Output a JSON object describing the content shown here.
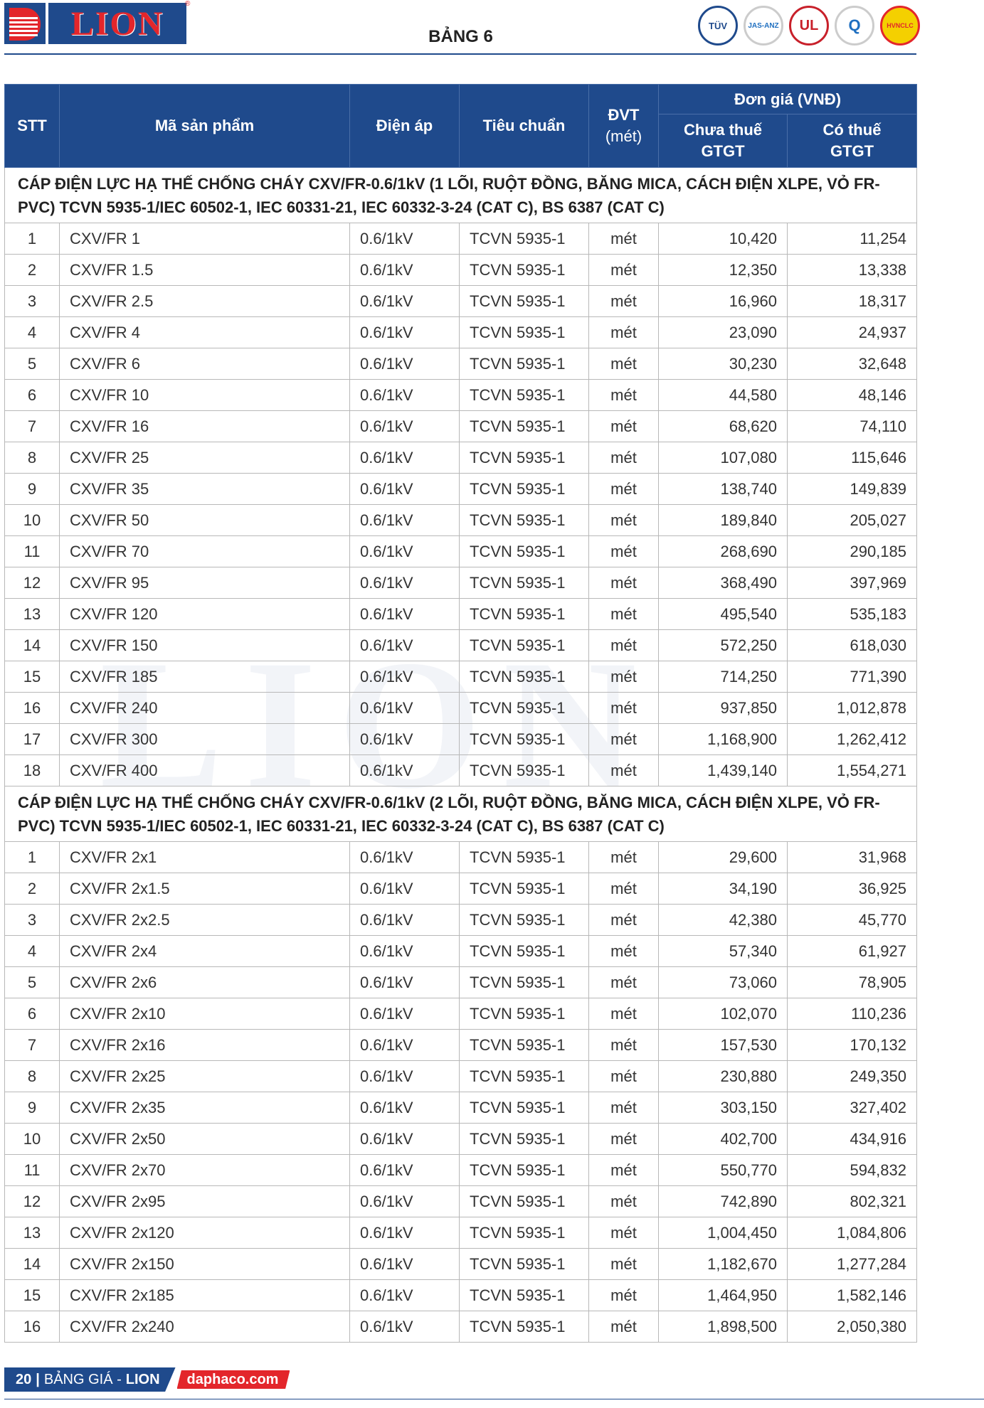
{
  "header": {
    "logo_text": "LION",
    "title": "BẢNG 6",
    "certs": [
      "TÜV",
      "JAS-ANZ",
      "UL",
      "Q",
      "HVNCLC"
    ]
  },
  "table": {
    "headers": {
      "stt": "STT",
      "product": "Mã sản phẩm",
      "voltage": "Điện áp",
      "standard": "Tiêu chuẩn",
      "unit": "ĐVT",
      "unit_sub": "(mét)",
      "price": "Đơn giá (VNĐ)",
      "price_no_vat": "Chưa thuế GTGT",
      "price_vat": "Có thuế GTGT"
    },
    "sections": [
      {
        "title": "CÁP ĐIỆN LỰC HẠ THẾ CHỐNG CHÁY CXV/FR-0.6/1kV (1 LÕI, RUỘT ĐỒNG, BĂNG MICA, CÁCH ĐIỆN XLPE, VỎ FR-PVC) TCVN 5935-1/IEC 60502-1, IEC 60331-21, IEC 60332-3-24 (CAT C), BS 6387 (CAT C)",
        "rows": [
          [
            "1",
            "CXV/FR 1",
            "10,420",
            "11,254"
          ],
          [
            "2",
            "CXV/FR 1.5",
            "12,350",
            "13,338"
          ],
          [
            "3",
            "CXV/FR 2.5",
            "16,960",
            "18,317"
          ],
          [
            "4",
            "CXV/FR 4",
            "23,090",
            "24,937"
          ],
          [
            "5",
            "CXV/FR 6",
            "30,230",
            "32,648"
          ],
          [
            "6",
            "CXV/FR 10",
            "44,580",
            "48,146"
          ],
          [
            "7",
            "CXV/FR 16",
            "68,620",
            "74,110"
          ],
          [
            "8",
            "CXV/FR 25",
            "107,080",
            "115,646"
          ],
          [
            "9",
            "CXV/FR 35",
            "138,740",
            "149,839"
          ],
          [
            "10",
            "CXV/FR 50",
            "189,840",
            "205,027"
          ],
          [
            "11",
            "CXV/FR 70",
            "268,690",
            "290,185"
          ],
          [
            "12",
            "CXV/FR 95",
            "368,490",
            "397,969"
          ],
          [
            "13",
            "CXV/FR 120",
            "495,540",
            "535,183"
          ],
          [
            "14",
            "CXV/FR 150",
            "572,250",
            "618,030"
          ],
          [
            "15",
            "CXV/FR 185",
            "714,250",
            "771,390"
          ],
          [
            "16",
            "CXV/FR 240",
            "937,850",
            "1,012,878"
          ],
          [
            "17",
            "CXV/FR 300",
            "1,168,900",
            "1,262,412"
          ],
          [
            "18",
            "CXV/FR 400",
            "1,439,140",
            "1,554,271"
          ]
        ]
      },
      {
        "title": "CÁP ĐIỆN LỰC HẠ THẾ CHỐNG CHÁY CXV/FR-0.6/1kV (2 LÕI, RUỘT ĐỒNG, BĂNG MICA, CÁCH ĐIỆN XLPE, VỎ FR-PVC) TCVN 5935-1/IEC 60502-1, IEC 60331-21, IEC 60332-3-24 (CAT C), BS 6387 (CAT C)",
        "rows": [
          [
            "1",
            "CXV/FR 2x1",
            "29,600",
            "31,968"
          ],
          [
            "2",
            "CXV/FR 2x1.5",
            "34,190",
            "36,925"
          ],
          [
            "3",
            "CXV/FR 2x2.5",
            "42,380",
            "45,770"
          ],
          [
            "4",
            "CXV/FR 2x4",
            "57,340",
            "61,927"
          ],
          [
            "5",
            "CXV/FR 2x6",
            "73,060",
            "78,905"
          ],
          [
            "6",
            "CXV/FR 2x10",
            "102,070",
            "110,236"
          ],
          [
            "7",
            "CXV/FR 2x16",
            "157,530",
            "170,132"
          ],
          [
            "8",
            "CXV/FR 2x25",
            "230,880",
            "249,350"
          ],
          [
            "9",
            "CXV/FR 2x35",
            "303,150",
            "327,402"
          ],
          [
            "10",
            "CXV/FR 2x50",
            "402,700",
            "434,916"
          ],
          [
            "11",
            "CXV/FR 2x70",
            "550,770",
            "594,832"
          ],
          [
            "12",
            "CXV/FR 2x95",
            "742,890",
            "802,321"
          ],
          [
            "13",
            "CXV/FR 2x120",
            "1,004,450",
            "1,084,806"
          ],
          [
            "14",
            "CXV/FR 2x150",
            "1,182,670",
            "1,277,284"
          ],
          [
            "15",
            "CXV/FR 2x185",
            "1,464,950",
            "1,582,146"
          ],
          [
            "16",
            "CXV/FR 2x240",
            "1,898,500",
            "2,050,380"
          ]
        ]
      }
    ],
    "voltage": "0.6/1kV",
    "standard": "TCVN 5935-1",
    "unit": "mét"
  },
  "footer": {
    "page": "20",
    "separator": "|",
    "label": "BẢNG GIÁ -",
    "brand": "LION",
    "website": "daphaco.com"
  },
  "colors": {
    "primary": "#1f4a8c",
    "accent": "#e3262b"
  }
}
